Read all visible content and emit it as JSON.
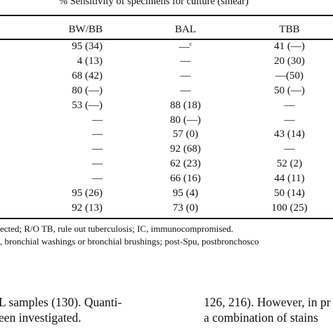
{
  "table": {
    "header_text": "% Sensitivity of specimens for culture (smear)",
    "header_sup": "b",
    "columns": [
      "BW/BB",
      "BAL",
      "TBB"
    ],
    "rows": [
      [
        "95 (34)",
        "—",
        "41 (—)"
      ],
      [
        "4 (13)",
        "—",
        "20 (30)"
      ],
      [
        "68 (42)",
        "—",
        "—(50)"
      ],
      [
        "80 (—)",
        "—",
        "50 (—)"
      ],
      [
        "53 (—)",
        "88 (18)",
        "—"
      ],
      [
        "—",
        "80 (—)",
        "—"
      ],
      [
        "—",
        "57 (0)",
        "43 (14)"
      ],
      [
        "—",
        "92 (68)",
        "—"
      ],
      [
        "—",
        "62 (23)",
        "52 (2)"
      ],
      [
        "—",
        "66 (16)",
        "44 (11)"
      ],
      [
        "95 (26)",
        "95 (4)",
        "50 (14)"
      ],
      [
        "92 (13)",
        "73 (0)",
        "100 (25)"
      ]
    ],
    "row0_bal_sup": "c"
  },
  "footnotes": [
    "ected; R/O TB, rule out tuberculosis; IC, immunocompromised.",
    ", bronchial washings or bronchial brushings; post-Spu, postbronchosco"
  ],
  "body_text": {
    "left_line1": "L samples (130). Quanti-",
    "left_line2": "een investigated.",
    "right_line1": "126, 216). However, in pr",
    "right_line2": "a combination of stains"
  }
}
